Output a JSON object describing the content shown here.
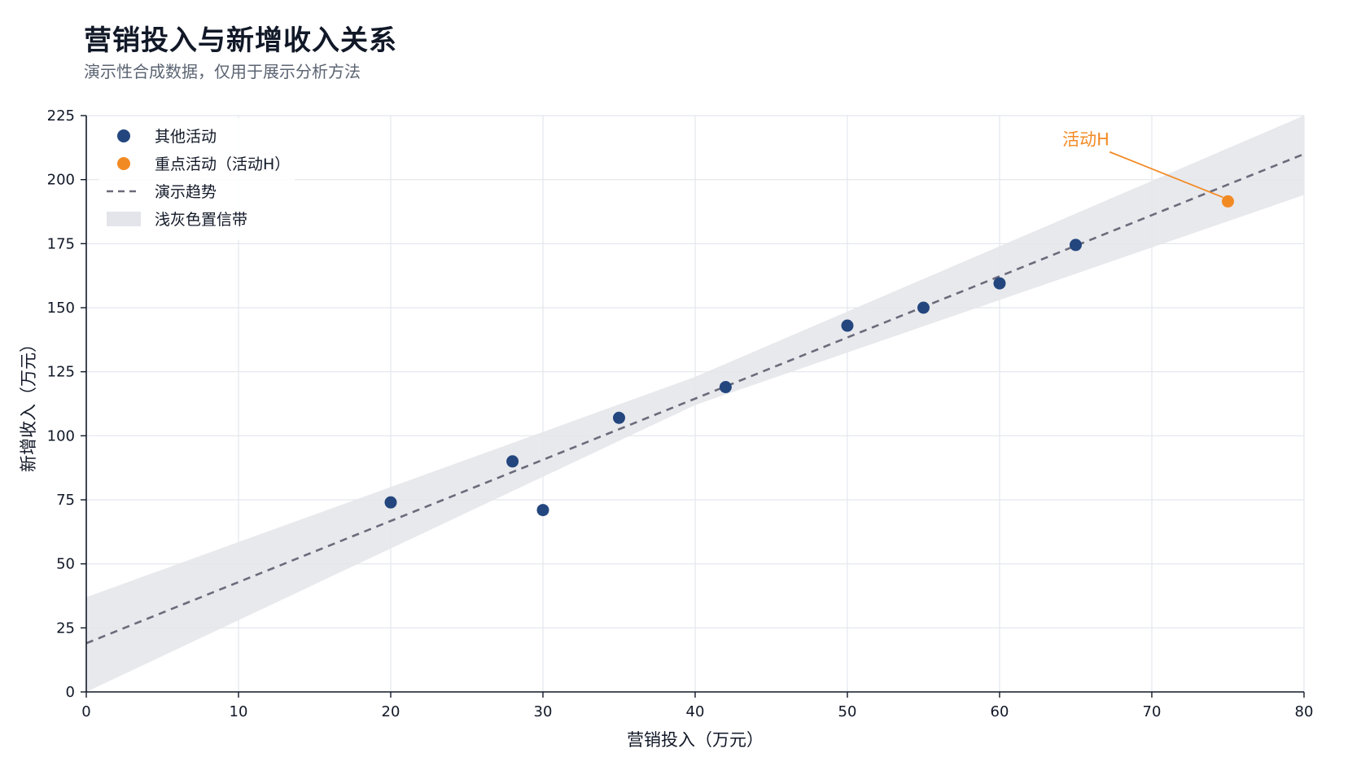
{
  "header": {
    "title": "营销投入与新增收入关系",
    "subtitle": "演示性合成数据，仅用于展示分析方法"
  },
  "chart_data": {
    "type": "scatter",
    "title": "营销投入与新增收入关系",
    "subtitle": "演示性合成数据，仅用于展示分析方法",
    "xlabel": "营销投入（万元）",
    "ylabel": "新增收入（万元）",
    "xlim": [
      0,
      80
    ],
    "ylim": [
      0,
      225
    ],
    "x_ticks": [
      0,
      10,
      20,
      30,
      40,
      50,
      60,
      70,
      80
    ],
    "y_ticks": [
      0,
      25,
      50,
      75,
      100,
      125,
      150,
      175,
      200,
      225
    ],
    "grid": true,
    "legend_position": "top-left",
    "series": [
      {
        "name": "其他活动",
        "color": "#23467e",
        "points": [
          {
            "x": 20,
            "y": 74
          },
          {
            "x": 28,
            "y": 90
          },
          {
            "x": 30,
            "y": 71
          },
          {
            "x": 35,
            "y": 107
          },
          {
            "x": 42,
            "y": 119
          },
          {
            "x": 50,
            "y": 143
          },
          {
            "x": 55,
            "y": 150
          },
          {
            "x": 60,
            "y": 159.5
          },
          {
            "x": 65,
            "y": 174.5
          }
        ]
      },
      {
        "name": "重点活动（活动H）",
        "color": "#f28a24",
        "points": [
          {
            "x": 75,
            "y": 191.5
          }
        ]
      }
    ],
    "trend": {
      "name": "演示趋势",
      "color": "#6b6b7b",
      "start": {
        "x": 0,
        "y": 19
      },
      "end": {
        "x": 80,
        "y": 210
      }
    },
    "band": {
      "name": "浅灰色置信带",
      "color": "#e4e5ea",
      "upper": [
        {
          "x": 0,
          "y": 37
        },
        {
          "x": 40,
          "y": 123
        },
        {
          "x": 80,
          "y": 225
        }
      ],
      "lower": [
        {
          "x": 0,
          "y": 0
        },
        {
          "x": 40,
          "y": 112
        },
        {
          "x": 80,
          "y": 194
        }
      ]
    },
    "annotation": {
      "text": "活动H",
      "color": "#f28a24",
      "point": {
        "x": 75,
        "y": 191.5
      },
      "label_at": {
        "x": 66.8,
        "y": 214
      }
    }
  }
}
